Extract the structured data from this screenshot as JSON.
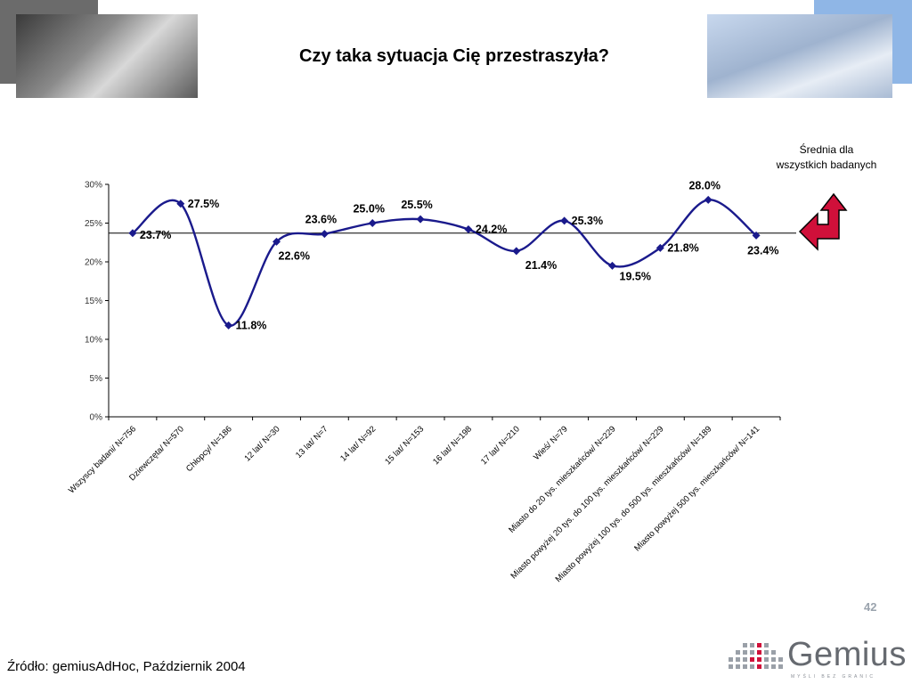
{
  "slide": {
    "title": "Czy taka sytuacja Cię przestraszyła?",
    "average_note": "Średnia dla wszystkich badanych",
    "page_number": "42",
    "source": "Źródło: gemiusAdHoc, Październik 2004",
    "logo_text": "Gemius",
    "logo_tagline": "MYŚLI BEZ GRANIC",
    "colors": {
      "series": "#1a1a8c",
      "arrow": "#d0103a",
      "axis": "#000000"
    }
  },
  "chart_data": {
    "type": "line",
    "title": "",
    "xlabel": "",
    "ylabel": "",
    "ylim": [
      0,
      30
    ],
    "yticks": [
      0,
      5,
      10,
      15,
      20,
      25,
      30
    ],
    "ytick_labels": [
      "0%",
      "5%",
      "10%",
      "15%",
      "20%",
      "25%",
      "30%"
    ],
    "grid": false,
    "reference_line": 23.7,
    "categories": [
      "Wszyscy badani/ N=756",
      "Dziewczęta/ N=570",
      "Chłopcy/ N=186",
      "12 lat/ N=30",
      "13 lat/ N=7",
      "14 lat/ N=92",
      "15 lat/ N=153",
      "16 lat/ N=198",
      "17 lat/ N=210",
      "Wieś/ N=79",
      "Miasto do 20 tys. mieszkańców/ N=229",
      "Miasto powyżej 20 tys. do 100 tys. mieszkańców/ N=229",
      "Miasto powyżej 100 tys. do 500 tys. mieszkańców/ N=189",
      "Miasto powyżej 500 tys. mieszkańców/ N=141"
    ],
    "series": [
      {
        "values": [
          23.7,
          27.5,
          11.8,
          22.6,
          23.6,
          25.0,
          25.5,
          24.2,
          21.4,
          25.3,
          19.5,
          21.8,
          28.0,
          23.4
        ],
        "labels": [
          "23.7%",
          "27.5%",
          "11.8%",
          "22.6%",
          "23.6%",
          "25.0%",
          "25.5%",
          "24.2%",
          "21.4%",
          "25.3%",
          "19.5%",
          "21.8%",
          "28.0%",
          "23.4%"
        ]
      }
    ]
  }
}
